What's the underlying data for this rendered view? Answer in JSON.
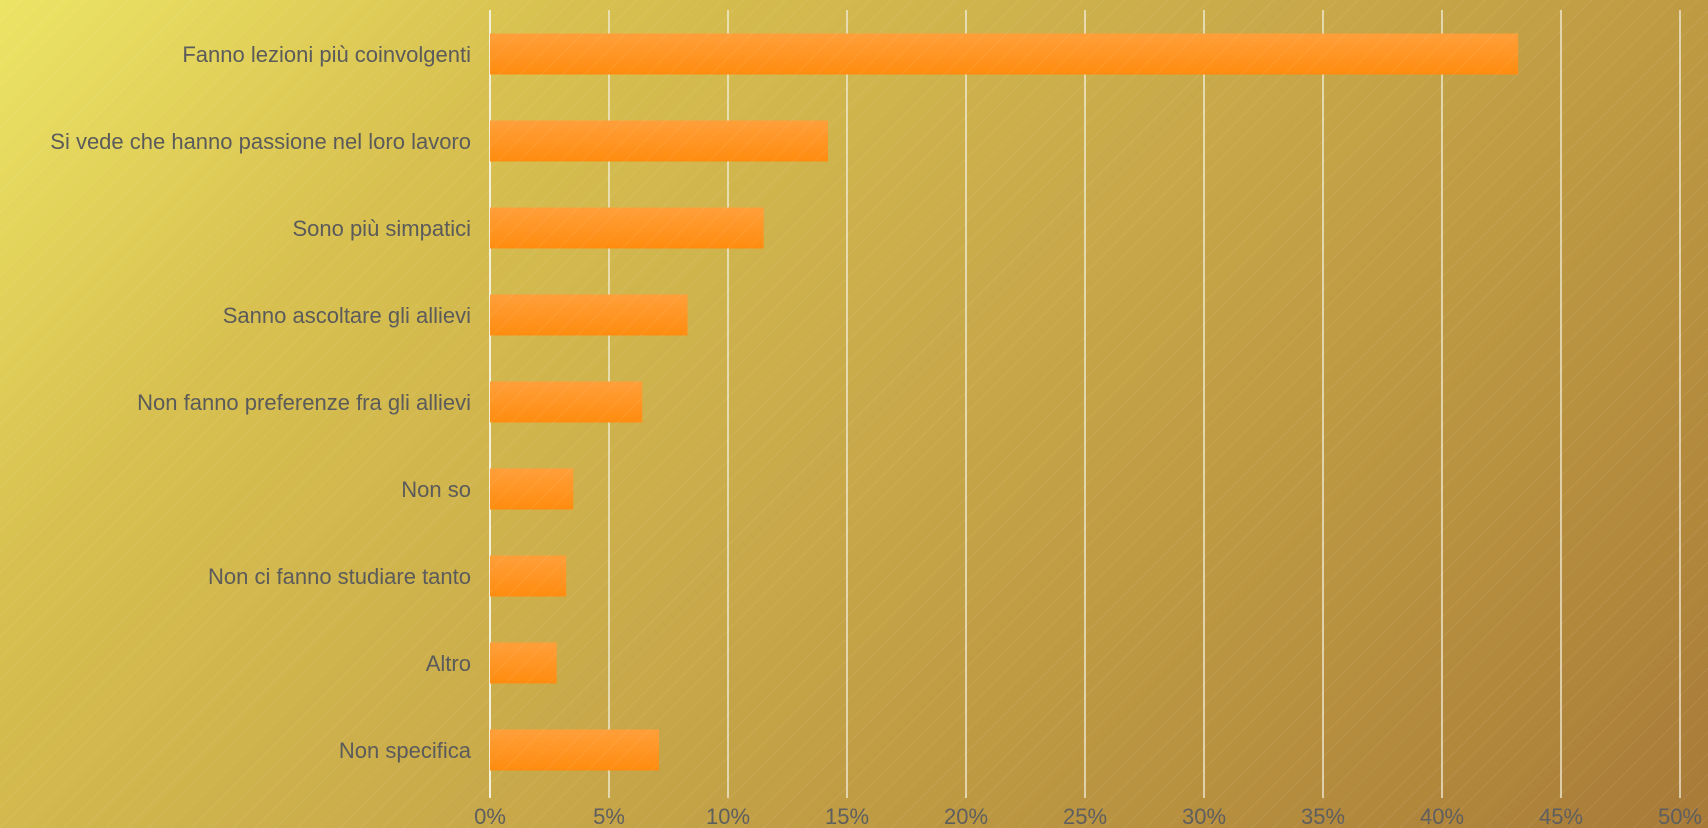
{
  "chart_data": {
    "type": "bar",
    "orientation": "horizontal",
    "categories": [
      "Fanno lezioni più coinvolgenti",
      "Si vede che hanno passione nel loro lavoro",
      "Sono più simpatici",
      "Sanno ascoltare gli allievi",
      "Non fanno preferenze fra gli allievi",
      "Non so",
      "Non ci fanno studiare tanto",
      "Altro",
      "Non specifica"
    ],
    "values": [
      43.2,
      14.2,
      11.5,
      8.3,
      6.4,
      3.5,
      3.2,
      2.8,
      7.1
    ],
    "value_unit": "%",
    "xlim": [
      0,
      50
    ],
    "x_ticks": [
      "0%",
      "5%",
      "10%",
      "15%",
      "20%",
      "25%",
      "30%",
      "35%",
      "40%",
      "45%",
      "50%"
    ],
    "title": "",
    "xlabel": "",
    "ylabel": "",
    "grid": "vertical",
    "legend": "none",
    "colors": {
      "bar_top": "#ff9f3a",
      "bar_bottom": "#ff8c0f",
      "grid": "#f2efdd",
      "label": "#5a5a5a",
      "background_start": "#ece465",
      "background_end": "#a87a38"
    }
  }
}
